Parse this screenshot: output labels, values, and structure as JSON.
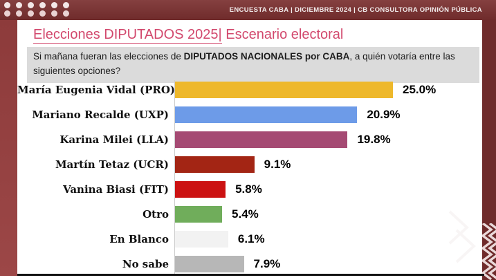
{
  "header": {
    "ribbon_text": "ENCUESTA CABA | DICIEMBRE 2024 | CB CONSULTORA OPINIÓN PÚBLICA"
  },
  "title": {
    "underlined": "Elecciones DIPUTADOS 2025|",
    "rest": " Escenario electoral"
  },
  "question": {
    "prefix": "Si mañana fueran las elecciones de ",
    "bold": "DIPUTADOS NACIONALES por CABA",
    "suffix": ", a quién votaría entre las siguientes opciones?"
  },
  "chart_data": {
    "type": "bar",
    "orientation": "horizontal",
    "title": "Elecciones DIPUTADOS 2025| Escenario electoral",
    "categories": [
      "María Eugenia Vidal (PRO)",
      "Mariano Recalde (UXP)",
      "Karina Milei (LLA)",
      "Martín Tetaz (UCR)",
      "Vanina Biasi (FIT)",
      "Otro",
      "En Blanco",
      "No sabe"
    ],
    "values": [
      25.0,
      20.9,
      19.8,
      9.1,
      5.8,
      5.4,
      6.1,
      7.9
    ],
    "value_labels": [
      "25.0%",
      "20.9%",
      "19.8%",
      "9.1%",
      "5.8%",
      "5.4%",
      "6.1%",
      "7.9%"
    ],
    "bar_colors": [
      "#eeb82b",
      "#6d9be8",
      "#a54a73",
      "#a32514",
      "#cc1212",
      "#70ad5b",
      "#f2f2f2",
      "#b7b7b7"
    ],
    "xlim": [
      0,
      28
    ],
    "xlabel": "",
    "ylabel": "",
    "grid": false,
    "legend": "none"
  },
  "colors": {
    "ribbon_bg": "#7a3333",
    "left_strip": "#9c4747",
    "right_strip": "#6f2b2b",
    "title_accent": "#d2486d",
    "question_bg": "#dbdbdb",
    "bottom_line": "#141414"
  }
}
